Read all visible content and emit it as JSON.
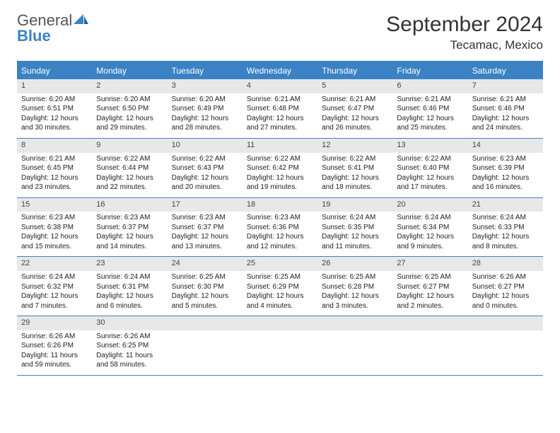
{
  "brand": {
    "general": "General",
    "blue": "Blue"
  },
  "title": "September 2024",
  "location": "Tecamac, Mexico",
  "colors": {
    "header_bg": "#3b82c4",
    "header_text": "#ffffff",
    "daynum_bg": "#e8e8e8",
    "border": "#3b82c4",
    "text": "#333333"
  },
  "dayheads": [
    "Sunday",
    "Monday",
    "Tuesday",
    "Wednesday",
    "Thursday",
    "Friday",
    "Saturday"
  ],
  "weeks": [
    [
      {
        "n": "1",
        "sr": "Sunrise: 6:20 AM",
        "ss": "Sunset: 6:51 PM",
        "dl1": "Daylight: 12 hours",
        "dl2": "and 30 minutes."
      },
      {
        "n": "2",
        "sr": "Sunrise: 6:20 AM",
        "ss": "Sunset: 6:50 PM",
        "dl1": "Daylight: 12 hours",
        "dl2": "and 29 minutes."
      },
      {
        "n": "3",
        "sr": "Sunrise: 6:20 AM",
        "ss": "Sunset: 6:49 PM",
        "dl1": "Daylight: 12 hours",
        "dl2": "and 28 minutes."
      },
      {
        "n": "4",
        "sr": "Sunrise: 6:21 AM",
        "ss": "Sunset: 6:48 PM",
        "dl1": "Daylight: 12 hours",
        "dl2": "and 27 minutes."
      },
      {
        "n": "5",
        "sr": "Sunrise: 6:21 AM",
        "ss": "Sunset: 6:47 PM",
        "dl1": "Daylight: 12 hours",
        "dl2": "and 26 minutes."
      },
      {
        "n": "6",
        "sr": "Sunrise: 6:21 AM",
        "ss": "Sunset: 6:46 PM",
        "dl1": "Daylight: 12 hours",
        "dl2": "and 25 minutes."
      },
      {
        "n": "7",
        "sr": "Sunrise: 6:21 AM",
        "ss": "Sunset: 6:46 PM",
        "dl1": "Daylight: 12 hours",
        "dl2": "and 24 minutes."
      }
    ],
    [
      {
        "n": "8",
        "sr": "Sunrise: 6:21 AM",
        "ss": "Sunset: 6:45 PM",
        "dl1": "Daylight: 12 hours",
        "dl2": "and 23 minutes."
      },
      {
        "n": "9",
        "sr": "Sunrise: 6:22 AM",
        "ss": "Sunset: 6:44 PM",
        "dl1": "Daylight: 12 hours",
        "dl2": "and 22 minutes."
      },
      {
        "n": "10",
        "sr": "Sunrise: 6:22 AM",
        "ss": "Sunset: 6:43 PM",
        "dl1": "Daylight: 12 hours",
        "dl2": "and 20 minutes."
      },
      {
        "n": "11",
        "sr": "Sunrise: 6:22 AM",
        "ss": "Sunset: 6:42 PM",
        "dl1": "Daylight: 12 hours",
        "dl2": "and 19 minutes."
      },
      {
        "n": "12",
        "sr": "Sunrise: 6:22 AM",
        "ss": "Sunset: 6:41 PM",
        "dl1": "Daylight: 12 hours",
        "dl2": "and 18 minutes."
      },
      {
        "n": "13",
        "sr": "Sunrise: 6:22 AM",
        "ss": "Sunset: 6:40 PM",
        "dl1": "Daylight: 12 hours",
        "dl2": "and 17 minutes."
      },
      {
        "n": "14",
        "sr": "Sunrise: 6:23 AM",
        "ss": "Sunset: 6:39 PM",
        "dl1": "Daylight: 12 hours",
        "dl2": "and 16 minutes."
      }
    ],
    [
      {
        "n": "15",
        "sr": "Sunrise: 6:23 AM",
        "ss": "Sunset: 6:38 PM",
        "dl1": "Daylight: 12 hours",
        "dl2": "and 15 minutes."
      },
      {
        "n": "16",
        "sr": "Sunrise: 6:23 AM",
        "ss": "Sunset: 6:37 PM",
        "dl1": "Daylight: 12 hours",
        "dl2": "and 14 minutes."
      },
      {
        "n": "17",
        "sr": "Sunrise: 6:23 AM",
        "ss": "Sunset: 6:37 PM",
        "dl1": "Daylight: 12 hours",
        "dl2": "and 13 minutes."
      },
      {
        "n": "18",
        "sr": "Sunrise: 6:23 AM",
        "ss": "Sunset: 6:36 PM",
        "dl1": "Daylight: 12 hours",
        "dl2": "and 12 minutes."
      },
      {
        "n": "19",
        "sr": "Sunrise: 6:24 AM",
        "ss": "Sunset: 6:35 PM",
        "dl1": "Daylight: 12 hours",
        "dl2": "and 11 minutes."
      },
      {
        "n": "20",
        "sr": "Sunrise: 6:24 AM",
        "ss": "Sunset: 6:34 PM",
        "dl1": "Daylight: 12 hours",
        "dl2": "and 9 minutes."
      },
      {
        "n": "21",
        "sr": "Sunrise: 6:24 AM",
        "ss": "Sunset: 6:33 PM",
        "dl1": "Daylight: 12 hours",
        "dl2": "and 8 minutes."
      }
    ],
    [
      {
        "n": "22",
        "sr": "Sunrise: 6:24 AM",
        "ss": "Sunset: 6:32 PM",
        "dl1": "Daylight: 12 hours",
        "dl2": "and 7 minutes."
      },
      {
        "n": "23",
        "sr": "Sunrise: 6:24 AM",
        "ss": "Sunset: 6:31 PM",
        "dl1": "Daylight: 12 hours",
        "dl2": "and 6 minutes."
      },
      {
        "n": "24",
        "sr": "Sunrise: 6:25 AM",
        "ss": "Sunset: 6:30 PM",
        "dl1": "Daylight: 12 hours",
        "dl2": "and 5 minutes."
      },
      {
        "n": "25",
        "sr": "Sunrise: 6:25 AM",
        "ss": "Sunset: 6:29 PM",
        "dl1": "Daylight: 12 hours",
        "dl2": "and 4 minutes."
      },
      {
        "n": "26",
        "sr": "Sunrise: 6:25 AM",
        "ss": "Sunset: 6:28 PM",
        "dl1": "Daylight: 12 hours",
        "dl2": "and 3 minutes."
      },
      {
        "n": "27",
        "sr": "Sunrise: 6:25 AM",
        "ss": "Sunset: 6:27 PM",
        "dl1": "Daylight: 12 hours",
        "dl2": "and 2 minutes."
      },
      {
        "n": "28",
        "sr": "Sunrise: 6:26 AM",
        "ss": "Sunset: 6:27 PM",
        "dl1": "Daylight: 12 hours",
        "dl2": "and 0 minutes."
      }
    ],
    [
      {
        "n": "29",
        "sr": "Sunrise: 6:26 AM",
        "ss": "Sunset: 6:26 PM",
        "dl1": "Daylight: 11 hours",
        "dl2": "and 59 minutes."
      },
      {
        "n": "30",
        "sr": "Sunrise: 6:26 AM",
        "ss": "Sunset: 6:25 PM",
        "dl1": "Daylight: 11 hours",
        "dl2": "and 58 minutes."
      },
      {
        "empty": true
      },
      {
        "empty": true
      },
      {
        "empty": true
      },
      {
        "empty": true
      },
      {
        "empty": true
      }
    ]
  ]
}
